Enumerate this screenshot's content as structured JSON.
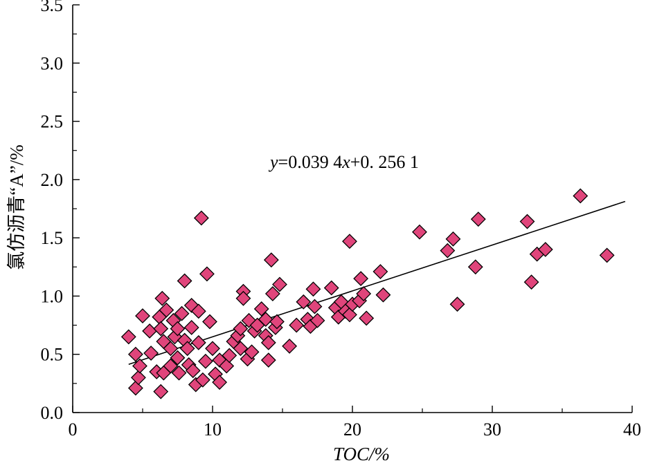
{
  "chart_data": {
    "type": "scatter",
    "title": "",
    "xlabel": "TOC/%",
    "ylabel": "氯仿沥青“A”/%",
    "xlim": [
      0,
      40
    ],
    "ylim": [
      0.0,
      3.5
    ],
    "x_ticks": [
      "0",
      "10",
      "20",
      "30",
      "40"
    ],
    "y_ticks": [
      "0.0",
      "0.5",
      "1.0",
      "1.5",
      "2.0",
      "2.5",
      "3.0",
      "3.5"
    ],
    "grid": false,
    "marker": "diamond",
    "marker_color": "#e0457b",
    "marker_edge_color": "#000000",
    "annotation": {
      "prefix": "y",
      "middle": "=0.039 4",
      "var": "x",
      "suffix": "+0. 256 1"
    },
    "trendline": {
      "slope": 0.0394,
      "intercept": 0.2561,
      "x_range": [
        4,
        39.5
      ]
    },
    "points": [
      [
        4.0,
        0.65
      ],
      [
        4.5,
        0.5
      ],
      [
        4.5,
        0.21
      ],
      [
        4.7,
        0.3
      ],
      [
        4.8,
        0.4
      ],
      [
        5.0,
        0.83
      ],
      [
        5.5,
        0.7
      ],
      [
        5.6,
        0.51
      ],
      [
        6.0,
        0.35
      ],
      [
        6.2,
        0.82
      ],
      [
        6.3,
        0.72
      ],
      [
        6.3,
        0.18
      ],
      [
        6.4,
        0.98
      ],
      [
        6.5,
        0.61
      ],
      [
        6.5,
        0.34
      ],
      [
        6.7,
        0.88
      ],
      [
        7.0,
        0.55
      ],
      [
        7.0,
        0.4
      ],
      [
        7.2,
        0.79
      ],
      [
        7.3,
        0.65
      ],
      [
        7.5,
        0.72
      ],
      [
        7.5,
        0.47
      ],
      [
        7.6,
        0.34
      ],
      [
        7.8,
        0.85
      ],
      [
        8.0,
        1.13
      ],
      [
        8.0,
        0.62
      ],
      [
        8.2,
        0.55
      ],
      [
        8.3,
        0.41
      ],
      [
        8.5,
        0.92
      ],
      [
        8.5,
        0.73
      ],
      [
        8.6,
        0.36
      ],
      [
        8.8,
        0.24
      ],
      [
        9.0,
        0.87
      ],
      [
        9.0,
        0.6
      ],
      [
        9.2,
        1.67
      ],
      [
        9.3,
        0.28
      ],
      [
        9.5,
        0.44
      ],
      [
        9.6,
        1.19
      ],
      [
        9.8,
        0.78
      ],
      [
        10.0,
        0.55
      ],
      [
        10.2,
        0.33
      ],
      [
        10.5,
        0.45
      ],
      [
        10.5,
        0.26
      ],
      [
        11.0,
        0.4
      ],
      [
        11.2,
        0.49
      ],
      [
        11.5,
        0.61
      ],
      [
        11.8,
        0.66
      ],
      [
        12.0,
        0.55
      ],
      [
        12.0,
        0.72
      ],
      [
        12.2,
        1.04
      ],
      [
        12.2,
        0.98
      ],
      [
        12.5,
        0.46
      ],
      [
        12.6,
        0.79
      ],
      [
        12.8,
        0.52
      ],
      [
        13.0,
        0.7
      ],
      [
        13.2,
        0.75
      ],
      [
        13.5,
        0.89
      ],
      [
        13.8,
        0.66
      ],
      [
        13.8,
        0.8
      ],
      [
        14.0,
        0.45
      ],
      [
        14.0,
        0.6
      ],
      [
        14.2,
        1.31
      ],
      [
        14.3,
        1.02
      ],
      [
        14.5,
        0.73
      ],
      [
        14.6,
        0.78
      ],
      [
        14.8,
        1.1
      ],
      [
        15.5,
        0.57
      ],
      [
        16.0,
        0.75
      ],
      [
        16.5,
        0.95
      ],
      [
        16.8,
        0.8
      ],
      [
        17.0,
        0.74
      ],
      [
        17.2,
        1.06
      ],
      [
        17.3,
        0.91
      ],
      [
        17.5,
        0.79
      ],
      [
        18.5,
        1.07
      ],
      [
        18.8,
        0.9
      ],
      [
        19.0,
        0.82
      ],
      [
        19.2,
        0.95
      ],
      [
        19.5,
        0.87
      ],
      [
        19.8,
        1.47
      ],
      [
        19.8,
        0.84
      ],
      [
        20.0,
        0.93
      ],
      [
        20.5,
        0.96
      ],
      [
        20.6,
        1.15
      ],
      [
        20.8,
        1.02
      ],
      [
        21.0,
        0.81
      ],
      [
        22.0,
        1.21
      ],
      [
        22.2,
        1.01
      ],
      [
        24.8,
        1.55
      ],
      [
        26.8,
        1.39
      ],
      [
        27.2,
        1.49
      ],
      [
        27.5,
        0.93
      ],
      [
        28.8,
        1.25
      ],
      [
        29.0,
        1.66
      ],
      [
        32.5,
        1.64
      ],
      [
        32.8,
        1.12
      ],
      [
        33.2,
        1.36
      ],
      [
        33.8,
        1.4
      ],
      [
        36.3,
        1.86
      ],
      [
        38.2,
        1.35
      ]
    ]
  }
}
